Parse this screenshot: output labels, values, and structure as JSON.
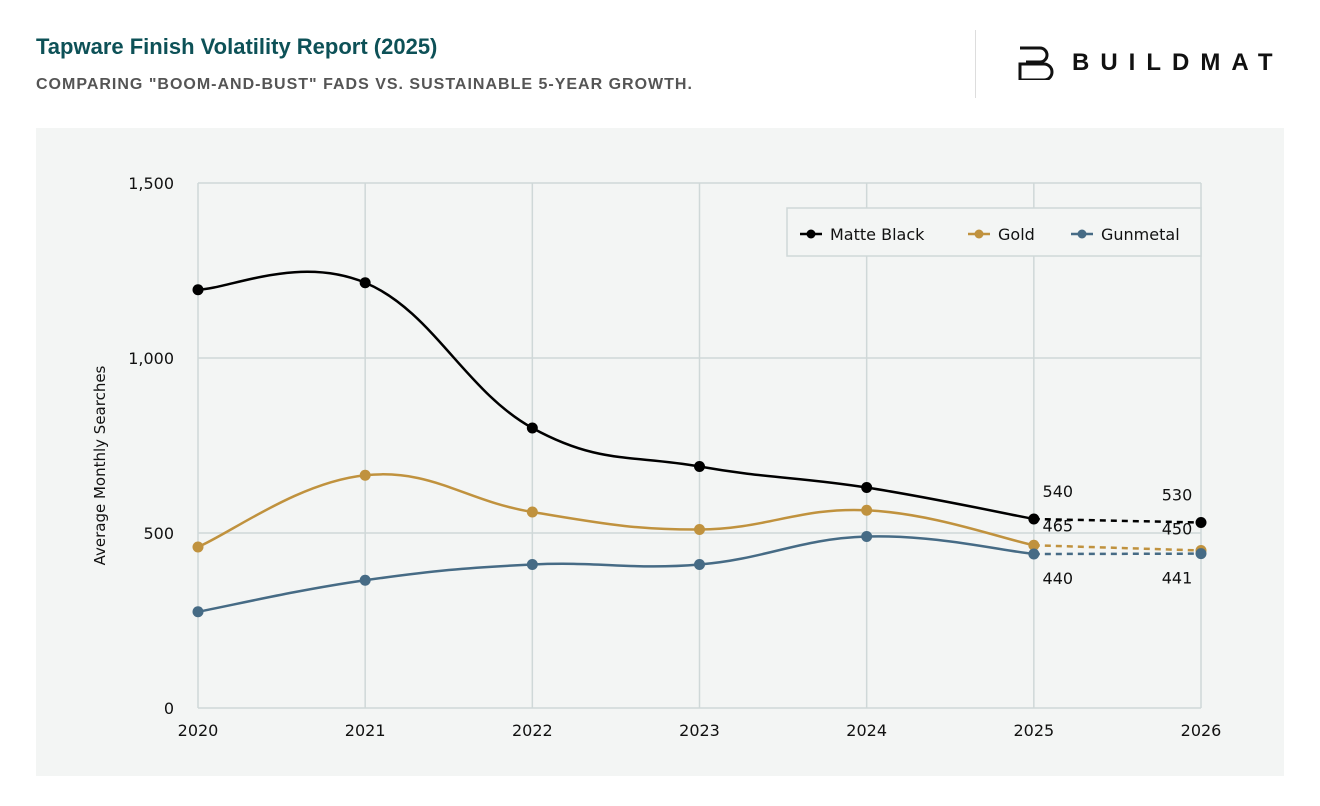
{
  "header": {
    "title": "Tapware Finish Volatility Report (2025)",
    "subtitle": "COMPARING \"BOOM-AND-BUST\" FADS VS. SUSTAINABLE 5-YEAR GROWTH.",
    "logo_text": "BUILDMAT"
  },
  "chart_data": {
    "type": "line",
    "title": "",
    "xlabel": "",
    "ylabel": "Average Monthly Searches",
    "x": [
      2020,
      2021,
      2022,
      2023,
      2024,
      2025,
      2026
    ],
    "ylim": [
      0,
      1500
    ],
    "yticks": [
      0,
      500,
      1000,
      1500
    ],
    "ytick_labels": [
      "0",
      "500",
      "1,000",
      "1,500"
    ],
    "grid": true,
    "legend": "top-right",
    "forecast_from": 2025,
    "series": [
      {
        "name": "Matte Black",
        "color": "#000000",
        "values": [
          1195,
          1215,
          800,
          690,
          630,
          540,
          530
        ],
        "labels": {
          "2025": "540",
          "2026": "530"
        }
      },
      {
        "name": "Gold",
        "color": "#c0923e",
        "values": [
          460,
          665,
          560,
          510,
          565,
          465,
          450
        ],
        "labels": {
          "2025": "465",
          "2026": "450"
        }
      },
      {
        "name": "Gunmetal",
        "color": "#466b85",
        "values": [
          275,
          365,
          410,
          410,
          490,
          440,
          441
        ],
        "labels": {
          "2025": "440",
          "2026": "441"
        }
      }
    ]
  }
}
